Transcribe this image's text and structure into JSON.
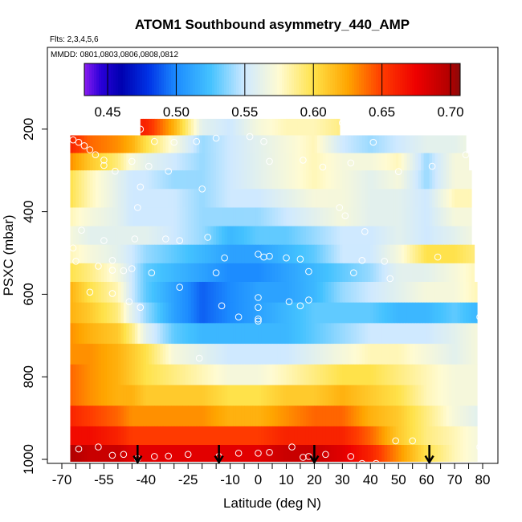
{
  "chart_data": {
    "type": "heatmap",
    "title": "ATOM1 Southbound asymmetry_440_AMP",
    "flights_note": "Flts: 2,3,4,5,6",
    "dates_note": "MMDD: 0801,0803,0806,0808,0812",
    "xlabel": "Latitude (deg N)",
    "ylabel": "PSXC (mbar)",
    "xlim": [
      -70,
      80
    ],
    "ylim": [
      1000,
      0
    ],
    "x_ticks": [
      -70,
      -55,
      -40,
      -25,
      -10,
      0,
      10,
      20,
      30,
      40,
      50,
      60,
      70,
      80
    ],
    "x_tick_labels": [
      "-70",
      "-55",
      "-40",
      "-25",
      "-10",
      "0",
      "10",
      "20",
      "30",
      "40",
      "50",
      "60",
      "70",
      "80"
    ],
    "x_minor_ticks": [
      -65,
      -60,
      -50,
      -45,
      -35,
      -30,
      -20,
      -15,
      -5,
      5,
      15,
      25,
      35,
      45,
      55,
      65,
      75
    ],
    "y_ticks": [
      200,
      400,
      600,
      800,
      1000
    ],
    "y_tick_labels": [
      "200",
      "400",
      "600",
      "800",
      "1000"
    ],
    "colorbar": {
      "min": 0.433,
      "max": 0.707,
      "ticks": [
        0.45,
        0.5,
        0.55,
        0.6,
        0.65,
        0.7
      ],
      "tick_labels": [
        "0.45",
        "0.50",
        "0.55",
        "0.60",
        "0.65",
        "0.70"
      ],
      "stops": [
        {
          "v": 0.433,
          "color": "#8a1cf0"
        },
        {
          "v": 0.445,
          "color": "#2a00d8"
        },
        {
          "v": 0.46,
          "color": "#0000b0"
        },
        {
          "v": 0.48,
          "color": "#0033e6"
        },
        {
          "v": 0.5,
          "color": "#1c8cff"
        },
        {
          "v": 0.525,
          "color": "#44c2ff"
        },
        {
          "v": 0.55,
          "color": "#cfe9ff"
        },
        {
          "v": 0.575,
          "color": "#fffbd2"
        },
        {
          "v": 0.6,
          "color": "#ffe24a"
        },
        {
          "v": 0.625,
          "color": "#ffa500"
        },
        {
          "v": 0.65,
          "color": "#ff3b00"
        },
        {
          "v": 0.675,
          "color": "#ee0000"
        },
        {
          "v": 0.7,
          "color": "#b00000"
        },
        {
          "v": 0.707,
          "color": "#8a0a0a"
        }
      ]
    },
    "grid_lat_range": [
      -67,
      78
    ],
    "grid_lat_step": 1,
    "grid_bands": [
      {
        "p0": 175,
        "p1": 215,
        "lat0": -42,
        "lat1": 29
      },
      {
        "p0": 215,
        "p1": 258,
        "lat0": -67,
        "lat1": 74
      },
      {
        "p0": 258,
        "p1": 300,
        "lat0": -67,
        "lat1": 75
      },
      {
        "p0": 300,
        "p1": 345,
        "lat0": -67,
        "lat1": 76
      },
      {
        "p0": 345,
        "p1": 390,
        "lat0": -67,
        "lat1": 76
      },
      {
        "p0": 390,
        "p1": 435,
        "lat0": -67,
        "lat1": 76
      },
      {
        "p0": 435,
        "p1": 480,
        "lat0": -67,
        "lat1": 76
      },
      {
        "p0": 480,
        "p1": 525,
        "lat0": -67,
        "lat1": 77
      },
      {
        "p0": 525,
        "p1": 570,
        "lat0": -67,
        "lat1": 77
      },
      {
        "p0": 570,
        "p1": 620,
        "lat0": -67,
        "lat1": 78
      },
      {
        "p0": 620,
        "p1": 670,
        "lat0": -67,
        "lat1": 78
      },
      {
        "p0": 670,
        "p1": 720,
        "lat0": -67,
        "lat1": 78
      },
      {
        "p0": 720,
        "p1": 770,
        "lat0": -67,
        "lat1": 78
      },
      {
        "p0": 770,
        "p1": 820,
        "lat0": -67,
        "lat1": 78
      },
      {
        "p0": 820,
        "p1": 870,
        "lat0": -67,
        "lat1": 78
      },
      {
        "p0": 870,
        "p1": 920,
        "lat0": -67,
        "lat1": 78
      },
      {
        "p0": 920,
        "p1": 965,
        "lat0": -67,
        "lat1": 78
      },
      {
        "p0": 965,
        "p1": 1005,
        "lat0": -67,
        "lat1": 78
      }
    ],
    "profile_lat": [
      -67,
      -60,
      -50,
      -45,
      -40,
      -30,
      -20,
      -10,
      0,
      10,
      20,
      30,
      40,
      50,
      60,
      70,
      78
    ],
    "profile_levels": [
      {
        "p": 195,
        "v": [
          0.64,
          0.64,
          0.65,
          0.66,
          0.66,
          0.62,
          0.56,
          0.55,
          0.57,
          0.58,
          0.58,
          0.59,
          0.6,
          0.6,
          0.6,
          0.6,
          0.6
        ]
      },
      {
        "p": 237,
        "v": [
          0.66,
          0.64,
          0.63,
          0.62,
          0.6,
          0.57,
          0.54,
          0.55,
          0.56,
          0.57,
          0.58,
          0.55,
          0.54,
          0.55,
          0.56,
          0.56,
          0.57
        ]
      },
      {
        "p": 280,
        "v": [
          0.63,
          0.61,
          0.59,
          0.57,
          0.56,
          0.55,
          0.54,
          0.55,
          0.56,
          0.57,
          0.58,
          0.57,
          0.57,
          0.58,
          0.54,
          0.57,
          0.57
        ]
      },
      {
        "p": 322,
        "v": [
          0.6,
          0.58,
          0.56,
          0.55,
          0.55,
          0.54,
          0.54,
          0.55,
          0.56,
          0.57,
          0.58,
          0.57,
          0.56,
          0.57,
          0.54,
          0.57,
          0.57
        ]
      },
      {
        "p": 368,
        "v": [
          0.6,
          0.58,
          0.56,
          0.55,
          0.55,
          0.55,
          0.54,
          0.55,
          0.55,
          0.56,
          0.57,
          0.57,
          0.56,
          0.56,
          0.55,
          0.58,
          0.58
        ]
      },
      {
        "p": 412,
        "v": [
          0.58,
          0.57,
          0.56,
          0.55,
          0.55,
          0.55,
          0.54,
          0.54,
          0.54,
          0.55,
          0.56,
          0.57,
          0.56,
          0.56,
          0.55,
          0.57,
          0.57
        ]
      },
      {
        "p": 458,
        "v": [
          0.57,
          0.56,
          0.56,
          0.56,
          0.56,
          0.55,
          0.54,
          0.52,
          0.53,
          0.53,
          0.54,
          0.55,
          0.55,
          0.56,
          0.55,
          0.56,
          0.57
        ]
      },
      {
        "p": 502,
        "v": [
          0.58,
          0.57,
          0.56,
          0.55,
          0.54,
          0.53,
          0.52,
          0.51,
          0.51,
          0.52,
          0.53,
          0.55,
          0.55,
          0.57,
          0.6,
          0.6,
          0.59
        ]
      },
      {
        "p": 548,
        "v": [
          0.6,
          0.59,
          0.57,
          0.55,
          0.53,
          0.52,
          0.51,
          0.5,
          0.5,
          0.51,
          0.52,
          0.53,
          0.54,
          0.56,
          0.56,
          0.57,
          0.58
        ]
      },
      {
        "p": 595,
        "v": [
          0.62,
          0.6,
          0.58,
          0.55,
          0.53,
          0.51,
          0.49,
          0.5,
          0.51,
          0.51,
          0.52,
          0.54,
          0.55,
          0.56,
          0.57,
          0.57,
          0.58
        ]
      },
      {
        "p": 645,
        "v": [
          0.62,
          0.61,
          0.59,
          0.56,
          0.54,
          0.51,
          0.49,
          0.5,
          0.51,
          0.52,
          0.53,
          0.53,
          0.53,
          0.52,
          0.52,
          0.53,
          0.52
        ]
      },
      {
        "p": 695,
        "v": [
          0.63,
          0.62,
          0.61,
          0.59,
          0.56,
          0.53,
          0.52,
          0.52,
          0.52,
          0.52,
          0.53,
          0.54,
          0.55,
          0.55,
          0.55,
          0.56,
          0.57
        ]
      },
      {
        "p": 745,
        "v": [
          0.63,
          0.63,
          0.62,
          0.61,
          0.6,
          0.57,
          0.56,
          0.55,
          0.55,
          0.55,
          0.56,
          0.57,
          0.58,
          0.58,
          0.57,
          0.56,
          0.57
        ]
      },
      {
        "p": 795,
        "v": [
          0.64,
          0.63,
          0.62,
          0.61,
          0.6,
          0.59,
          0.58,
          0.57,
          0.57,
          0.58,
          0.59,
          0.6,
          0.6,
          0.59,
          0.58,
          0.57,
          0.57
        ]
      },
      {
        "p": 845,
        "v": [
          0.64,
          0.63,
          0.62,
          0.62,
          0.61,
          0.61,
          0.61,
          0.6,
          0.6,
          0.61,
          0.61,
          0.62,
          0.61,
          0.6,
          0.58,
          0.57,
          0.57
        ]
      },
      {
        "p": 895,
        "v": [
          0.66,
          0.65,
          0.64,
          0.63,
          0.63,
          0.63,
          0.63,
          0.62,
          0.62,
          0.63,
          0.64,
          0.64,
          0.62,
          0.61,
          0.59,
          0.57,
          0.56
        ]
      },
      {
        "p": 942,
        "v": [
          0.67,
          0.67,
          0.66,
          0.65,
          0.65,
          0.65,
          0.65,
          0.65,
          0.65,
          0.66,
          0.66,
          0.66,
          0.64,
          0.61,
          0.59,
          0.58,
          0.57
        ]
      },
      {
        "p": 985,
        "v": [
          0.7,
          0.69,
          0.69,
          0.68,
          0.68,
          0.68,
          0.68,
          0.68,
          0.68,
          0.69,
          0.69,
          0.68,
          0.66,
          0.63,
          0.6,
          0.58,
          0.57
        ]
      }
    ],
    "observations": [
      {
        "lat": -42,
        "p": 200
      },
      {
        "lat": -66,
        "p": 226
      },
      {
        "lat": -64,
        "p": 232
      },
      {
        "lat": -62,
        "p": 240
      },
      {
        "lat": -60,
        "p": 250
      },
      {
        "lat": -58,
        "p": 262
      },
      {
        "lat": -55,
        "p": 275
      },
      {
        "lat": -37,
        "p": 230
      },
      {
        "lat": -30,
        "p": 232
      },
      {
        "lat": -22,
        "p": 230
      },
      {
        "lat": -15,
        "p": 222
      },
      {
        "lat": -3,
        "p": 218
      },
      {
        "lat": 2,
        "p": 230
      },
      {
        "lat": 30,
        "p": 185
      },
      {
        "lat": 41,
        "p": 232
      },
      {
        "lat": -55,
        "p": 288
      },
      {
        "lat": -51,
        "p": 302
      },
      {
        "lat": -45,
        "p": 278
      },
      {
        "lat": -39,
        "p": 290
      },
      {
        "lat": -32,
        "p": 302
      },
      {
        "lat": 4,
        "p": 278
      },
      {
        "lat": 16,
        "p": 275
      },
      {
        "lat": 23,
        "p": 292
      },
      {
        "lat": 33,
        "p": 282
      },
      {
        "lat": 50,
        "p": 303
      },
      {
        "lat": 62,
        "p": 290
      },
      {
        "lat": 74,
        "p": 262
      },
      {
        "lat": -42,
        "p": 340
      },
      {
        "lat": -20,
        "p": 345
      },
      {
        "lat": -43,
        "p": 390
      },
      {
        "lat": 29,
        "p": 390
      },
      {
        "lat": 31,
        "p": 410
      },
      {
        "lat": -63,
        "p": 445
      },
      {
        "lat": -66,
        "p": 488
      },
      {
        "lat": -55,
        "p": 470
      },
      {
        "lat": -44,
        "p": 466
      },
      {
        "lat": -33,
        "p": 466
      },
      {
        "lat": -28,
        "p": 470
      },
      {
        "lat": -18,
        "p": 462
      },
      {
        "lat": 38,
        "p": 448
      },
      {
        "lat": -65,
        "p": 520
      },
      {
        "lat": -52,
        "p": 518
      },
      {
        "lat": -12,
        "p": 512
      },
      {
        "lat": 0,
        "p": 503
      },
      {
        "lat": 2,
        "p": 510
      },
      {
        "lat": 4,
        "p": 508
      },
      {
        "lat": 10,
        "p": 512
      },
      {
        "lat": 15,
        "p": 515
      },
      {
        "lat": 37,
        "p": 518
      },
      {
        "lat": 45,
        "p": 520
      },
      {
        "lat": 64,
        "p": 510
      },
      {
        "lat": -57,
        "p": 532
      },
      {
        "lat": -52,
        "p": 542
      },
      {
        "lat": -48,
        "p": 543
      },
      {
        "lat": -45,
        "p": 538
      },
      {
        "lat": -38,
        "p": 548
      },
      {
        "lat": -15,
        "p": 548
      },
      {
        "lat": 18,
        "p": 545
      },
      {
        "lat": 34,
        "p": 548
      },
      {
        "lat": 47,
        "p": 562
      },
      {
        "lat": -60,
        "p": 595
      },
      {
        "lat": -52,
        "p": 598
      },
      {
        "lat": -28,
        "p": 583
      },
      {
        "lat": -46,
        "p": 618
      },
      {
        "lat": -42,
        "p": 632
      },
      {
        "lat": -13,
        "p": 628
      },
      {
        "lat": 0,
        "p": 608
      },
      {
        "lat": 0,
        "p": 632
      },
      {
        "lat": 11,
        "p": 618
      },
      {
        "lat": 15,
        "p": 628
      },
      {
        "lat": 18,
        "p": 614
      },
      {
        "lat": -7,
        "p": 655
      },
      {
        "lat": 0,
        "p": 660
      },
      {
        "lat": 0,
        "p": 665
      },
      {
        "lat": 79,
        "p": 655
      },
      {
        "lat": -21,
        "p": 755
      },
      {
        "lat": -64,
        "p": 975
      },
      {
        "lat": -57,
        "p": 970
      },
      {
        "lat": -52,
        "p": 990
      },
      {
        "lat": -48,
        "p": 988
      },
      {
        "lat": -43,
        "p": 998
      },
      {
        "lat": -37,
        "p": 993
      },
      {
        "lat": -32,
        "p": 992
      },
      {
        "lat": -25,
        "p": 988
      },
      {
        "lat": -14,
        "p": 993
      },
      {
        "lat": -7,
        "p": 985
      },
      {
        "lat": 0,
        "p": 985
      },
      {
        "lat": 4,
        "p": 983
      },
      {
        "lat": 12,
        "p": 970
      },
      {
        "lat": 16,
        "p": 995
      },
      {
        "lat": 18,
        "p": 993
      },
      {
        "lat": 24,
        "p": 988
      },
      {
        "lat": 33,
        "p": 993
      },
      {
        "lat": 37,
        "p": 1010
      },
      {
        "lat": 42,
        "p": 1010
      },
      {
        "lat": 49,
        "p": 955
      },
      {
        "lat": 55,
        "p": 955
      },
      {
        "lat": 79,
        "p": 970
      }
    ],
    "arrows": [
      {
        "lat": -43,
        "p_top": 965,
        "p_tip": 1007
      },
      {
        "lat": -14,
        "p_top": 965,
        "p_tip": 1007
      },
      {
        "lat": 20,
        "p_top": 965,
        "p_tip": 1007
      },
      {
        "lat": 61,
        "p_top": 965,
        "p_tip": 1007
      }
    ]
  }
}
